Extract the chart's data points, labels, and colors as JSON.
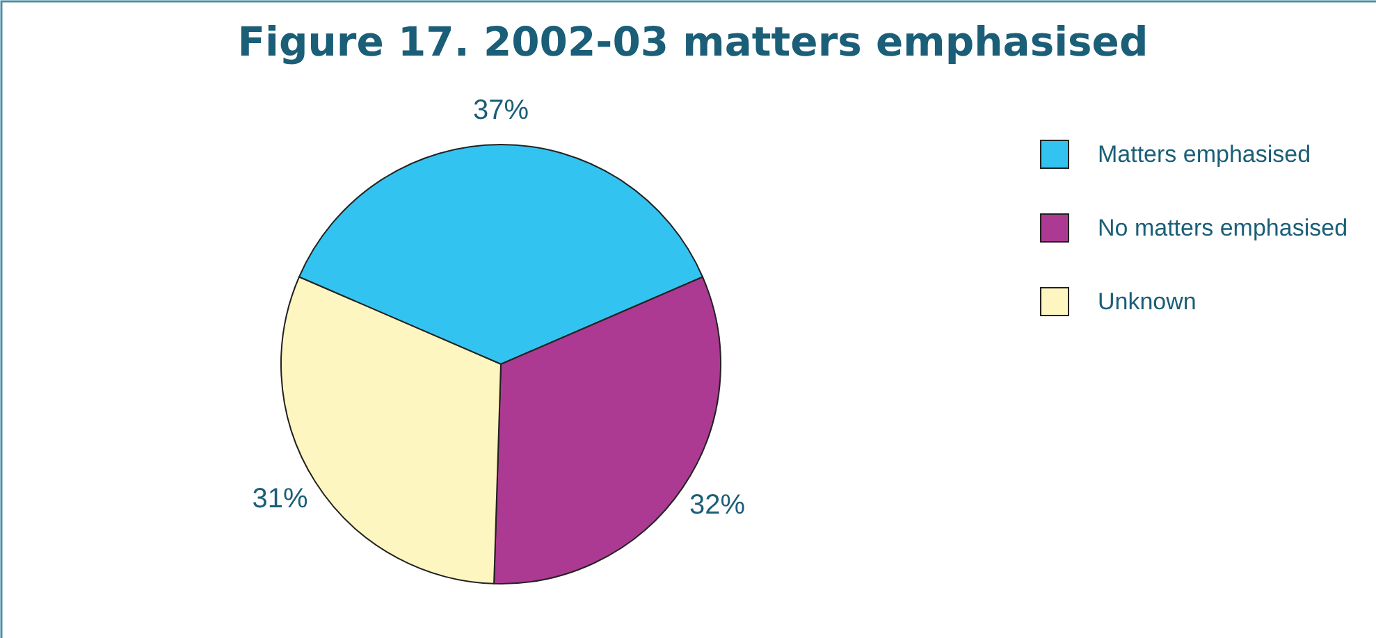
{
  "chart_data": {
    "type": "pie",
    "title": "Figure 17. 2002-03 matters emphasised",
    "categories": [
      "Matters emphasised",
      "No matters emphasised",
      "Unknown"
    ],
    "values": [
      37,
      32,
      31
    ],
    "colors": [
      "#33c3f0",
      "#ac3a92",
      "#fef6c0"
    ],
    "value_labels": [
      "37%",
      "32%",
      "31%"
    ],
    "legend": "right"
  }
}
